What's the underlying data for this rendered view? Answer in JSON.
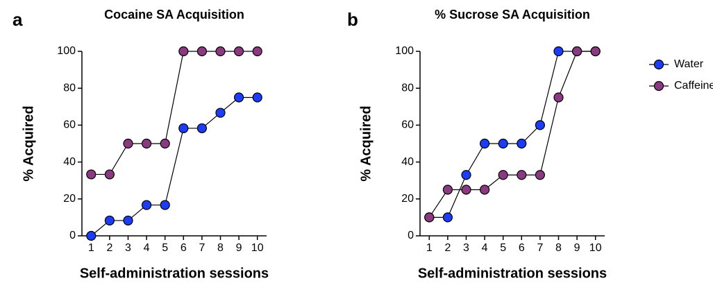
{
  "chart_data": [
    {
      "type": "line",
      "panel": "a",
      "title": "Cocaine SA Acquisition",
      "xlabel": "Self-administration sessions",
      "ylabel": "% Acquired",
      "x": [
        1,
        2,
        3,
        4,
        5,
        6,
        7,
        8,
        9,
        10
      ],
      "series": [
        {
          "name": "Water",
          "color": "#1c3cf5",
          "values": [
            0,
            8.3,
            8.3,
            16.7,
            16.7,
            58.3,
            58.3,
            66.7,
            75,
            75
          ]
        },
        {
          "name": "Caffeine",
          "color": "#8a3a80",
          "values": [
            33.3,
            33.3,
            50,
            50,
            50,
            100,
            100,
            100,
            100,
            100
          ]
        }
      ],
      "xlim": [
        0.5,
        10.5
      ],
      "xticks": [
        1,
        2,
        3,
        4,
        5,
        6,
        7,
        8,
        9,
        10
      ],
      "ylim": [
        0,
        100
      ],
      "yticks": [
        0,
        20,
        40,
        60,
        80,
        100
      ],
      "legend": false
    },
    {
      "type": "line",
      "panel": "b",
      "title": "% Sucrose SA Acquisition",
      "xlabel": "Self-administration sessions",
      "ylabel": "% Acquired",
      "x": [
        1,
        2,
        3,
        4,
        5,
        6,
        7,
        8,
        9,
        10
      ],
      "series": [
        {
          "name": "Water",
          "color": "#1c3cf5",
          "values": [
            10,
            10,
            33,
            50,
            50,
            50,
            60,
            100,
            100,
            100
          ]
        },
        {
          "name": "Caffeine",
          "color": "#8a3a80",
          "values": [
            10,
            25,
            25,
            25,
            33,
            33,
            33,
            75,
            100,
            100
          ]
        }
      ],
      "xlim": [
        0.5,
        10.5
      ],
      "xticks": [
        1,
        2,
        3,
        4,
        5,
        6,
        7,
        8,
        9,
        10
      ],
      "ylim": [
        0,
        100
      ],
      "yticks": [
        0,
        20,
        40,
        60,
        80,
        100
      ],
      "legend": "right"
    }
  ]
}
